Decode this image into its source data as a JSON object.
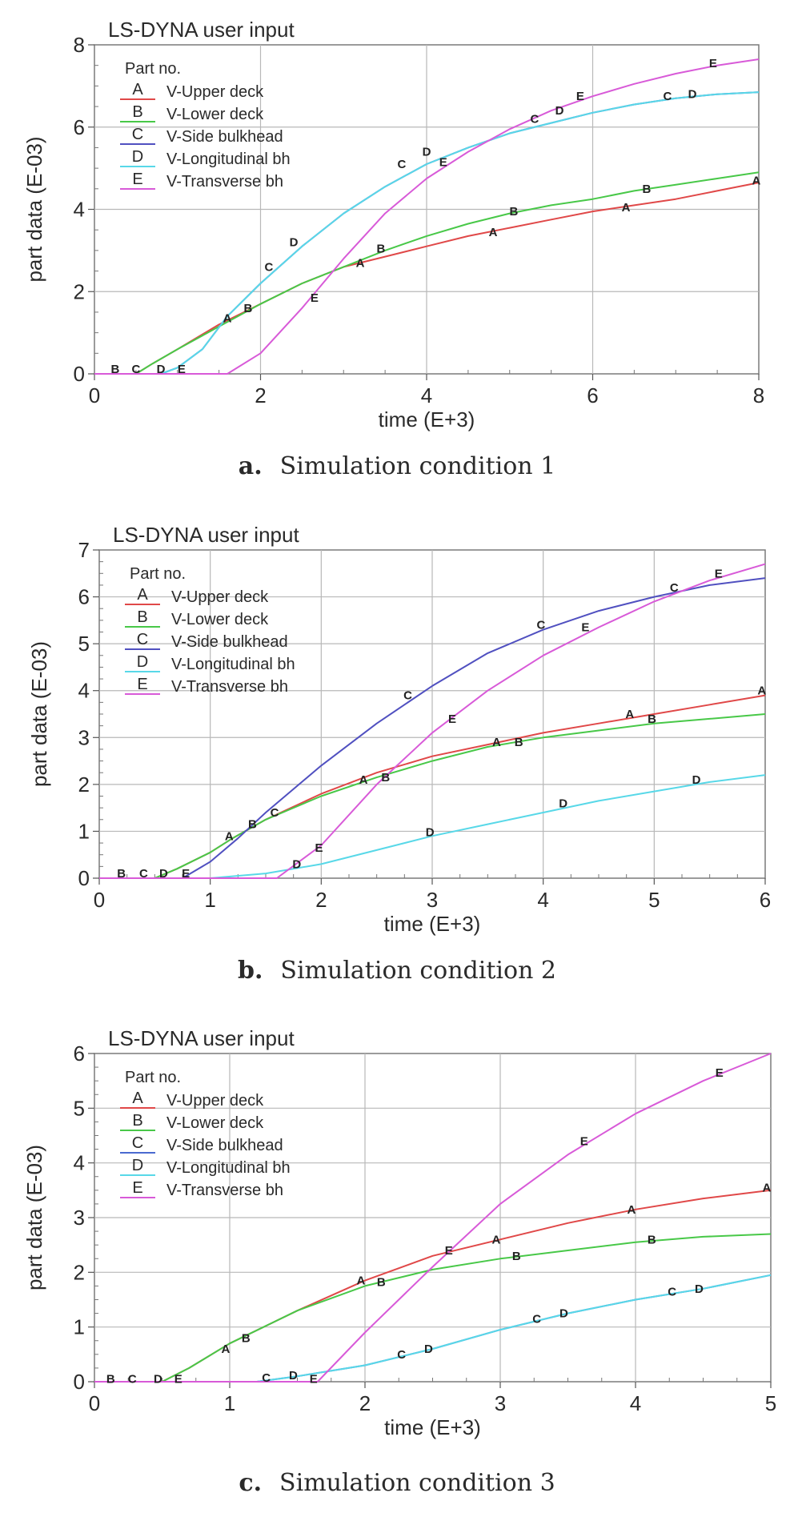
{
  "chart_data": [
    {
      "type": "line",
      "title": "LS-DYNA user input",
      "xlabel": "time (E+3)",
      "ylabel": "part data (E-03)",
      "xlim": [
        0,
        8
      ],
      "ylim": [
        0,
        8
      ],
      "xticks": [
        "0",
        "2",
        "4",
        "6",
        "8"
      ],
      "yticks": [
        "0",
        "2",
        "4",
        "6",
        "8"
      ],
      "grid": true,
      "legend_title": "Part no.",
      "legend_position": "top-left",
      "series": [
        {
          "key": "A",
          "name": "V-Upper deck",
          "color": "#e04848",
          "x": [
            0,
            0.5,
            0.7,
            1.0,
            1.5,
            2.0,
            2.5,
            3.0,
            3.5,
            4.0,
            4.5,
            5.0,
            5.5,
            6.0,
            6.5,
            7.0,
            7.5,
            8.0
          ],
          "y": [
            0,
            0,
            0.25,
            0.6,
            1.2,
            1.7,
            2.2,
            2.6,
            2.85,
            3.1,
            3.35,
            3.55,
            3.75,
            3.95,
            4.1,
            4.25,
            4.45,
            4.65
          ]
        },
        {
          "key": "B",
          "name": "V-Lower deck",
          "color": "#48c848",
          "x": [
            0,
            0.5,
            0.7,
            1.0,
            1.5,
            2.0,
            2.5,
            3.0,
            3.5,
            4.0,
            4.5,
            5.0,
            5.5,
            6.0,
            6.5,
            7.0,
            7.5,
            8.0
          ],
          "y": [
            0,
            0,
            0.25,
            0.6,
            1.15,
            1.7,
            2.2,
            2.6,
            3.0,
            3.35,
            3.65,
            3.9,
            4.1,
            4.25,
            4.45,
            4.6,
            4.75,
            4.9
          ]
        },
        {
          "key": "C",
          "name": "V-Side bulkhead",
          "color": "#5050c0",
          "x": [
            0,
            0.8,
            1.0,
            1.3,
            1.6,
            2.0,
            2.5,
            3.0,
            3.5,
            4.0,
            4.5,
            5.0,
            5.5,
            6.0,
            6.5,
            7.0,
            7.5,
            8.0
          ],
          "y": [
            0,
            0,
            0.15,
            0.6,
            1.4,
            2.2,
            3.1,
            3.9,
            4.55,
            5.1,
            5.5,
            5.85,
            6.1,
            6.35,
            6.55,
            6.7,
            6.8,
            6.85
          ]
        },
        {
          "key": "D",
          "name": "V-Longitudinal bh",
          "color": "#58d8e8",
          "x": [
            0,
            0.8,
            1.0,
            1.3,
            1.6,
            2.0,
            2.5,
            3.0,
            3.5,
            4.0,
            4.5,
            5.0,
            5.5,
            6.0,
            6.5,
            7.0,
            7.5,
            8.0
          ],
          "y": [
            0,
            0,
            0.15,
            0.6,
            1.4,
            2.2,
            3.1,
            3.9,
            4.55,
            5.1,
            5.5,
            5.85,
            6.1,
            6.35,
            6.55,
            6.7,
            6.8,
            6.85
          ]
        },
        {
          "key": "E",
          "name": "V-Transverse bh",
          "color": "#d85ad8",
          "x": [
            0,
            1.6,
            2.0,
            2.5,
            3.0,
            3.5,
            4.0,
            4.5,
            5.0,
            5.5,
            6.0,
            6.5,
            7.0,
            7.5,
            8.0
          ],
          "y": [
            0,
            0,
            0.5,
            1.6,
            2.8,
            3.9,
            4.75,
            5.4,
            5.95,
            6.4,
            6.75,
            7.05,
            7.3,
            7.5,
            7.65
          ]
        }
      ],
      "markers": [
        {
          "label": "B",
          "x": 0.25,
          "y": 0.12
        },
        {
          "label": "C",
          "x": 0.5,
          "y": 0.12
        },
        {
          "label": "D",
          "x": 0.8,
          "y": 0.12
        },
        {
          "label": "E",
          "x": 1.05,
          "y": 0.12
        },
        {
          "label": "A",
          "x": 1.6,
          "y": 1.35
        },
        {
          "label": "B",
          "x": 1.85,
          "y": 1.6
        },
        {
          "label": "C",
          "x": 2.1,
          "y": 2.6
        },
        {
          "label": "D",
          "x": 2.4,
          "y": 3.2
        },
        {
          "label": "E",
          "x": 2.65,
          "y": 1.85
        },
        {
          "label": "A",
          "x": 3.2,
          "y": 2.7
        },
        {
          "label": "B",
          "x": 3.45,
          "y": 3.05
        },
        {
          "label": "C",
          "x": 3.7,
          "y": 5.1
        },
        {
          "label": "D",
          "x": 4.0,
          "y": 5.4
        },
        {
          "label": "E",
          "x": 4.2,
          "y": 5.15
        },
        {
          "label": "A",
          "x": 4.8,
          "y": 3.45
        },
        {
          "label": "B",
          "x": 5.05,
          "y": 3.95
        },
        {
          "label": "C",
          "x": 5.3,
          "y": 6.2
        },
        {
          "label": "D",
          "x": 5.6,
          "y": 6.4
        },
        {
          "label": "E",
          "x": 5.85,
          "y": 6.75
        },
        {
          "label": "A",
          "x": 6.4,
          "y": 4.05
        },
        {
          "label": "B",
          "x": 6.65,
          "y": 4.5
        },
        {
          "label": "C",
          "x": 6.9,
          "y": 6.75
        },
        {
          "label": "D",
          "x": 7.2,
          "y": 6.8
        },
        {
          "label": "E",
          "x": 7.45,
          "y": 7.55
        },
        {
          "label": "A",
          "x": 7.97,
          "y": 4.7
        }
      ]
    },
    {
      "type": "line",
      "title": "LS-DYNA user input",
      "xlabel": "time (E+3)",
      "ylabel": "part data (E-03)",
      "xlim": [
        0,
        6
      ],
      "ylim": [
        0,
        7
      ],
      "xticks": [
        "0",
        "1",
        "2",
        "3",
        "4",
        "5",
        "6"
      ],
      "yticks": [
        "0",
        "1",
        "2",
        "3",
        "4",
        "5",
        "6",
        "7"
      ],
      "grid": true,
      "legend_title": "Part no.",
      "legend_position": "top-left",
      "series": [
        {
          "key": "A",
          "name": "V-Upper deck",
          "color": "#e04848",
          "x": [
            0,
            0.5,
            0.7,
            1.0,
            1.2,
            1.5,
            2.0,
            2.5,
            3.0,
            3.5,
            4.0,
            4.5,
            5.0,
            5.5,
            6.0
          ],
          "y": [
            0,
            0,
            0.2,
            0.55,
            0.85,
            1.25,
            1.8,
            2.25,
            2.6,
            2.85,
            3.1,
            3.3,
            3.5,
            3.7,
            3.9
          ]
        },
        {
          "key": "B",
          "name": "V-Lower deck",
          "color": "#48c848",
          "x": [
            0,
            0.5,
            0.7,
            1.0,
            1.2,
            1.5,
            2.0,
            2.5,
            3.0,
            3.5,
            4.0,
            4.5,
            5.0,
            5.5,
            6.0
          ],
          "y": [
            0,
            0,
            0.2,
            0.55,
            0.85,
            1.25,
            1.75,
            2.15,
            2.5,
            2.8,
            3.0,
            3.15,
            3.3,
            3.4,
            3.5
          ]
        },
        {
          "key": "C",
          "name": "V-Side bulkhead",
          "color": "#5050c0",
          "x": [
            0,
            0.75,
            1.0,
            1.25,
            1.5,
            2.0,
            2.5,
            3.0,
            3.5,
            4.0,
            4.5,
            5.0,
            5.5,
            6.0
          ],
          "y": [
            0,
            0,
            0.35,
            0.85,
            1.4,
            2.4,
            3.3,
            4.1,
            4.8,
            5.3,
            5.7,
            6.0,
            6.25,
            6.4
          ]
        },
        {
          "key": "D",
          "name": "V-Longitudinal bh",
          "color": "#58d8e8",
          "x": [
            0,
            1.0,
            1.5,
            2.0,
            2.5,
            3.0,
            3.5,
            4.0,
            4.5,
            5.0,
            5.5,
            6.0
          ],
          "y": [
            0,
            0,
            0.1,
            0.3,
            0.6,
            0.9,
            1.15,
            1.4,
            1.65,
            1.85,
            2.05,
            2.2
          ]
        },
        {
          "key": "E",
          "name": "V-Transverse bh",
          "color": "#d85ad8",
          "x": [
            0,
            1.6,
            2.0,
            2.5,
            3.0,
            3.5,
            4.0,
            4.5,
            5.0,
            5.5,
            6.0
          ],
          "y": [
            0,
            0,
            0.7,
            2.0,
            3.1,
            4.0,
            4.75,
            5.35,
            5.9,
            6.35,
            6.7
          ]
        }
      ],
      "markers": [
        {
          "label": "B",
          "x": 0.2,
          "y": 0.1
        },
        {
          "label": "C",
          "x": 0.4,
          "y": 0.1
        },
        {
          "label": "D",
          "x": 0.58,
          "y": 0.1
        },
        {
          "label": "E",
          "x": 0.78,
          "y": 0.1
        },
        {
          "label": "A",
          "x": 1.17,
          "y": 0.9
        },
        {
          "label": "B",
          "x": 1.38,
          "y": 1.15
        },
        {
          "label": "C",
          "x": 1.58,
          "y": 1.4
        },
        {
          "label": "D",
          "x": 1.78,
          "y": 0.3
        },
        {
          "label": "E",
          "x": 1.98,
          "y": 0.65
        },
        {
          "label": "A",
          "x": 2.38,
          "y": 2.1
        },
        {
          "label": "B",
          "x": 2.58,
          "y": 2.15
        },
        {
          "label": "C",
          "x": 2.78,
          "y": 3.9
        },
        {
          "label": "D",
          "x": 2.98,
          "y": 0.98
        },
        {
          "label": "E",
          "x": 3.18,
          "y": 3.4
        },
        {
          "label": "A",
          "x": 3.58,
          "y": 2.9
        },
        {
          "label": "B",
          "x": 3.78,
          "y": 2.9
        },
        {
          "label": "C",
          "x": 3.98,
          "y": 5.4
        },
        {
          "label": "D",
          "x": 4.18,
          "y": 1.6
        },
        {
          "label": "E",
          "x": 4.38,
          "y": 5.35
        },
        {
          "label": "A",
          "x": 4.78,
          "y": 3.5
        },
        {
          "label": "B",
          "x": 4.98,
          "y": 3.4
        },
        {
          "label": "C",
          "x": 5.18,
          "y": 6.2
        },
        {
          "label": "D",
          "x": 5.38,
          "y": 2.1
        },
        {
          "label": "E",
          "x": 5.58,
          "y": 6.5
        },
        {
          "label": "A",
          "x": 5.97,
          "y": 4.0
        }
      ]
    },
    {
      "type": "line",
      "title": "LS-DYNA user input",
      "xlabel": "time (E+3)",
      "ylabel": "part data (E-03)",
      "xlim": [
        0,
        5
      ],
      "ylim": [
        0,
        6
      ],
      "xticks": [
        "0",
        "1",
        "2",
        "3",
        "4",
        "5"
      ],
      "yticks": [
        "0",
        "1",
        "2",
        "3",
        "4",
        "5",
        "6"
      ],
      "grid": true,
      "legend_title": "Part no.",
      "legend_position": "top-left",
      "series": [
        {
          "key": "A",
          "name": "V-Upper deck",
          "color": "#e04848",
          "x": [
            0,
            0.5,
            0.7,
            1.0,
            1.5,
            2.0,
            2.5,
            3.0,
            3.5,
            4.0,
            4.5,
            5.0
          ],
          "y": [
            0,
            0,
            0.25,
            0.7,
            1.3,
            1.85,
            2.3,
            2.6,
            2.9,
            3.15,
            3.35,
            3.5
          ]
        },
        {
          "key": "B",
          "name": "V-Lower deck",
          "color": "#48c848",
          "x": [
            0,
            0.5,
            0.7,
            1.0,
            1.5,
            2.0,
            2.5,
            3.0,
            3.5,
            4.0,
            4.5,
            5.0
          ],
          "y": [
            0,
            0,
            0.25,
            0.7,
            1.3,
            1.75,
            2.05,
            2.25,
            2.4,
            2.55,
            2.65,
            2.7
          ]
        },
        {
          "key": "C",
          "name": "V-Side bulkhead",
          "color": "#4a6ad0",
          "x": [
            0,
            1.2,
            1.5,
            2.0,
            2.5,
            3.0,
            3.5,
            4.0,
            4.5,
            5.0
          ],
          "y": [
            0,
            0,
            0.1,
            0.3,
            0.6,
            0.95,
            1.25,
            1.5,
            1.7,
            1.95
          ]
        },
        {
          "key": "D",
          "name": "V-Longitudinal bh",
          "color": "#58d8e8",
          "x": [
            0,
            1.2,
            1.5,
            2.0,
            2.5,
            3.0,
            3.5,
            4.0,
            4.5,
            5.0
          ],
          "y": [
            0,
            0,
            0.1,
            0.3,
            0.6,
            0.95,
            1.25,
            1.5,
            1.7,
            1.95
          ]
        },
        {
          "key": "E",
          "name": "V-Transverse bh",
          "color": "#d85ad8",
          "x": [
            0,
            1.65,
            2.0,
            2.5,
            3.0,
            3.5,
            4.0,
            4.5,
            5.0
          ],
          "y": [
            0,
            0,
            0.9,
            2.1,
            3.25,
            4.15,
            4.9,
            5.5,
            6.0
          ]
        }
      ],
      "markers": [
        {
          "label": "B",
          "x": 0.12,
          "y": 0.05
        },
        {
          "label": "C",
          "x": 0.28,
          "y": 0.05
        },
        {
          "label": "D",
          "x": 0.47,
          "y": 0.05
        },
        {
          "label": "E",
          "x": 0.62,
          "y": 0.05
        },
        {
          "label": "A",
          "x": 0.97,
          "y": 0.6
        },
        {
          "label": "B",
          "x": 1.12,
          "y": 0.8
        },
        {
          "label": "C",
          "x": 1.27,
          "y": 0.07
        },
        {
          "label": "D",
          "x": 1.47,
          "y": 0.12
        },
        {
          "label": "E",
          "x": 1.62,
          "y": 0.05
        },
        {
          "label": "A",
          "x": 1.97,
          "y": 1.85
        },
        {
          "label": "B",
          "x": 2.12,
          "y": 1.82
        },
        {
          "label": "C",
          "x": 2.27,
          "y": 0.5
        },
        {
          "label": "D",
          "x": 2.47,
          "y": 0.6
        },
        {
          "label": "E",
          "x": 2.62,
          "y": 2.4
        },
        {
          "label": "A",
          "x": 2.97,
          "y": 2.6
        },
        {
          "label": "B",
          "x": 3.12,
          "y": 2.3
        },
        {
          "label": "C",
          "x": 3.27,
          "y": 1.15
        },
        {
          "label": "D",
          "x": 3.47,
          "y": 1.25
        },
        {
          "label": "E",
          "x": 3.62,
          "y": 4.4
        },
        {
          "label": "A",
          "x": 3.97,
          "y": 3.15
        },
        {
          "label": "B",
          "x": 4.12,
          "y": 2.6
        },
        {
          "label": "C",
          "x": 4.27,
          "y": 1.65
        },
        {
          "label": "D",
          "x": 4.47,
          "y": 1.7
        },
        {
          "label": "E",
          "x": 4.62,
          "y": 5.65
        },
        {
          "label": "A",
          "x": 4.97,
          "y": 3.55
        }
      ]
    }
  ],
  "captions": [
    {
      "letter": "a.",
      "text": "Simulation condition 1"
    },
    {
      "letter": "b.",
      "text": "Simulation condition 2"
    },
    {
      "letter": "c.",
      "text": "Simulation condition 3"
    }
  ]
}
